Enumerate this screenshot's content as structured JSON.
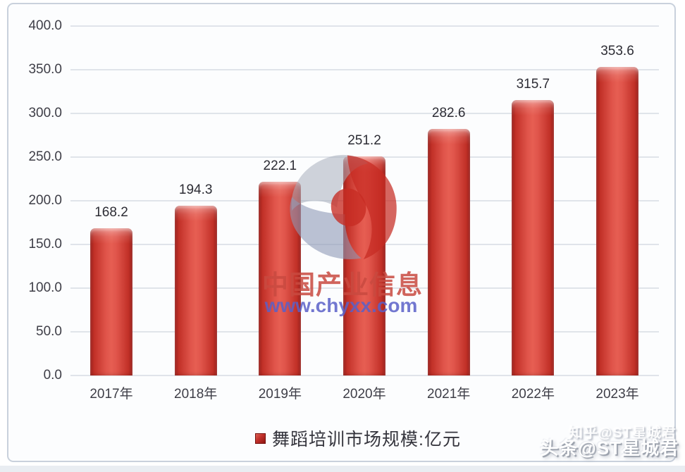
{
  "chart_data": {
    "type": "bar",
    "title": "",
    "categories": [
      "2017年",
      "2018年",
      "2019年",
      "2020年",
      "2021年",
      "2022年",
      "2023年"
    ],
    "values": [
      168.2,
      194.3,
      222.1,
      251.2,
      282.6,
      315.7,
      353.6
    ],
    "value_labels": [
      "168.2",
      "194.3",
      "222.1",
      "251.2",
      "282.6",
      "315.7",
      "353.6"
    ],
    "series_name": "舞蹈培训市场规模:亿元",
    "xlabel": "",
    "ylabel": "",
    "ylim": [
      0,
      400
    ],
    "yticks": [
      {
        "value": 0,
        "label": "0.0"
      },
      {
        "value": 50,
        "label": "50.0"
      },
      {
        "value": 100,
        "label": "100.0"
      },
      {
        "value": 150,
        "label": "150.0"
      },
      {
        "value": 200,
        "label": "200.0"
      },
      {
        "value": 250,
        "label": "250.0"
      },
      {
        "value": 300,
        "label": "300.0"
      },
      {
        "value": 350,
        "label": "350.0"
      },
      {
        "value": 400,
        "label": "400.0"
      }
    ],
    "grid": true,
    "legend_position": "bottom",
    "bar_color": "#cf3830"
  },
  "legend": {
    "label": "舞蹈培训市场规模:亿元",
    "marker_color": "#b02622"
  },
  "watermark_center": {
    "brand_name": "中国产业信息",
    "brand_url": "www.chyxx.com"
  },
  "watermark_corner": {
    "faint_text": "知乎@ST星城君",
    "main_text": "头条@ST星城君"
  },
  "colors": {
    "bar_main": "#cf3830",
    "bar_edge": "#9e211c",
    "bar_highlight": "#e65e52",
    "gridline": "#e0e4ea",
    "axis_text": "#3e3e47",
    "frame_border": "#c9d1dc",
    "brand_red": "#c94a40",
    "brand_blue": "#5a60c8"
  }
}
